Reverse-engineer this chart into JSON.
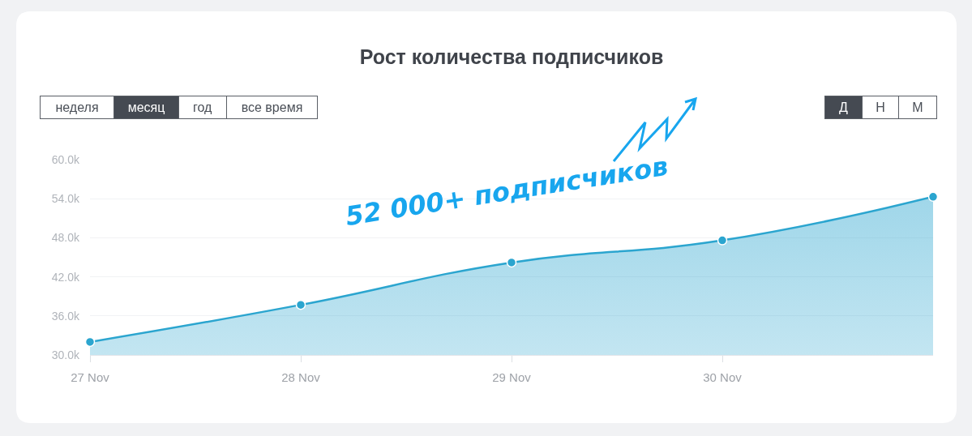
{
  "chart_data": {
    "type": "area",
    "title": "Рост количества подписчиков",
    "categories": [
      "27 Nov",
      "28 Nov",
      "29 Nov",
      "30 Nov",
      null
    ],
    "series": [
      {
        "color": "#2ba5cf",
        "values": [
          32000,
          37700,
          44200,
          47600,
          54300
        ]
      }
    ],
    "ylim": [
      30000,
      60000
    ],
    "yticks": [
      {
        "value": 30000,
        "label": "30.0k"
      },
      {
        "value": 36000,
        "label": "36.0k"
      },
      {
        "value": 42000,
        "label": "42.0k"
      },
      {
        "value": 48000,
        "label": "48.0k"
      },
      {
        "value": 54000,
        "label": "54.0k"
      },
      {
        "value": 60000,
        "label": "60.0k"
      }
    ],
    "grid": "y",
    "marker": "circle",
    "annotations": [
      "неделя",
      "месяц",
      "год",
      "все время",
      "Д",
      "Н",
      "М",
      "52 000+ подписчиков"
    ]
  }
}
